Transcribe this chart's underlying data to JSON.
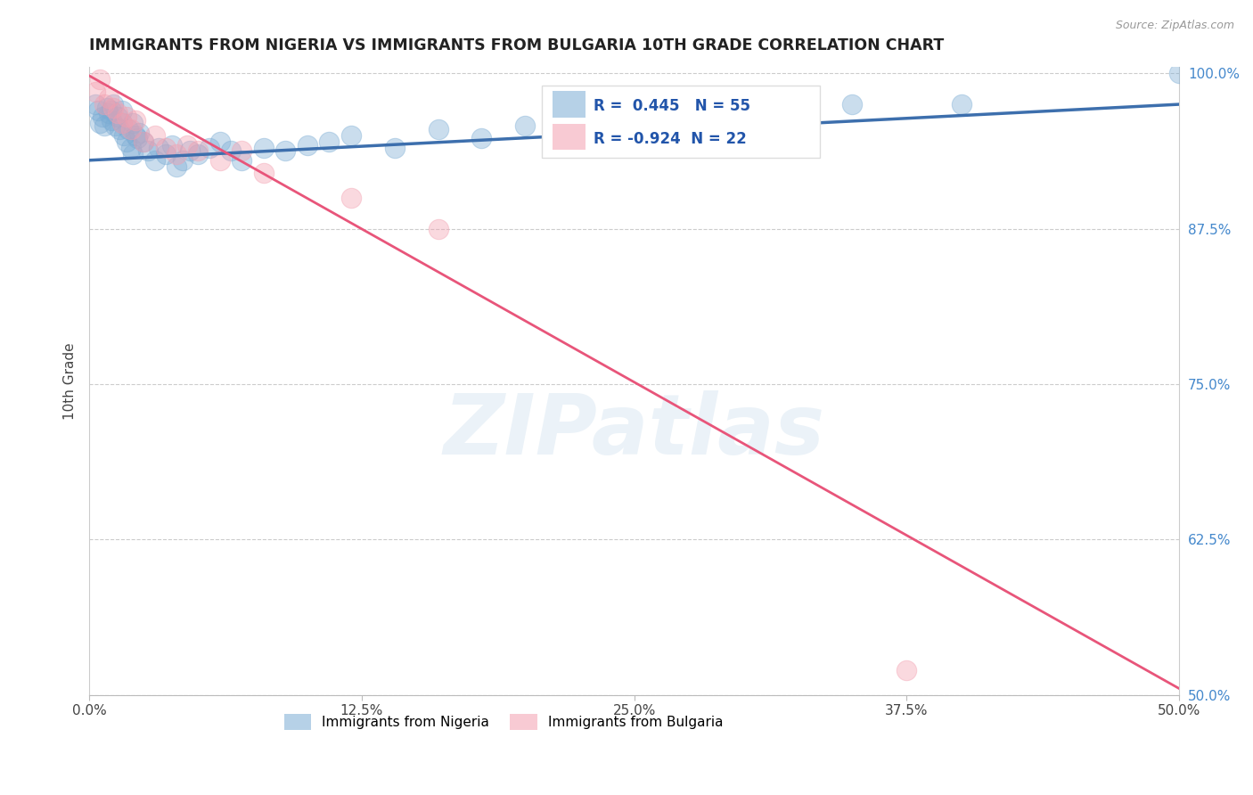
{
  "title": "IMMIGRANTS FROM NIGERIA VS IMMIGRANTS FROM BULGARIA 10TH GRADE CORRELATION CHART",
  "source_text": "Source: ZipAtlas.com",
  "ylabel": "10th Grade",
  "xlim": [
    0.0,
    0.5
  ],
  "ylim": [
    0.5,
    1.005
  ],
  "xtick_labels": [
    "0.0%",
    "12.5%",
    "25.0%",
    "37.5%",
    "50.0%"
  ],
  "xtick_vals": [
    0.0,
    0.125,
    0.25,
    0.375,
    0.5
  ],
  "ytick_labels": [
    "50.0%",
    "62.5%",
    "75.0%",
    "87.5%",
    "100.0%"
  ],
  "ytick_vals": [
    0.5,
    0.625,
    0.75,
    0.875,
    1.0
  ],
  "nigeria_color": "#7BACD4",
  "bulgaria_color": "#F4A0B0",
  "nigeria_line_color": "#3D6FAD",
  "bulgaria_line_color": "#E8557A",
  "R_nigeria": 0.445,
  "N_nigeria": 55,
  "R_bulgaria": -0.924,
  "N_bulgaria": 22,
  "watermark": "ZIPatlas",
  "nigeria_scatter_x": [
    0.003,
    0.004,
    0.005,
    0.006,
    0.007,
    0.008,
    0.009,
    0.01,
    0.01,
    0.011,
    0.012,
    0.013,
    0.014,
    0.015,
    0.015,
    0.016,
    0.017,
    0.018,
    0.019,
    0.02,
    0.02,
    0.021,
    0.022,
    0.023,
    0.025,
    0.027,
    0.03,
    0.032,
    0.035,
    0.038,
    0.04,
    0.043,
    0.046,
    0.05,
    0.055,
    0.06,
    0.065,
    0.07,
    0.08,
    0.09,
    0.1,
    0.11,
    0.12,
    0.14,
    0.16,
    0.18,
    0.2,
    0.22,
    0.24,
    0.26,
    0.28,
    0.3,
    0.35,
    0.4,
    0.5
  ],
  "nigeria_scatter_y": [
    0.975,
    0.97,
    0.96,
    0.965,
    0.958,
    0.972,
    0.968,
    0.962,
    0.97,
    0.975,
    0.958,
    0.965,
    0.955,
    0.96,
    0.97,
    0.95,
    0.945,
    0.955,
    0.94,
    0.935,
    0.96,
    0.95,
    0.948,
    0.952,
    0.945,
    0.938,
    0.93,
    0.94,
    0.935,
    0.942,
    0.925,
    0.93,
    0.938,
    0.935,
    0.94,
    0.945,
    0.938,
    0.93,
    0.94,
    0.938,
    0.942,
    0.945,
    0.95,
    0.94,
    0.955,
    0.948,
    0.958,
    0.952,
    0.962,
    0.968,
    0.96,
    0.97,
    0.975,
    0.975,
    1.0
  ],
  "bulgaria_scatter_x": [
    0.003,
    0.005,
    0.007,
    0.009,
    0.011,
    0.013,
    0.015,
    0.017,
    0.019,
    0.021,
    0.025,
    0.03,
    0.035,
    0.04,
    0.045,
    0.05,
    0.06,
    0.07,
    0.08,
    0.12,
    0.16,
    0.375
  ],
  "bulgaria_scatter_y": [
    0.985,
    0.995,
    0.975,
    0.98,
    0.972,
    0.968,
    0.96,
    0.965,
    0.955,
    0.962,
    0.945,
    0.95,
    0.94,
    0.935,
    0.942,
    0.938,
    0.93,
    0.938,
    0.92,
    0.9,
    0.875,
    0.52
  ],
  "nig_line_x0": 0.0,
  "nig_line_y0": 0.93,
  "nig_line_x1": 0.5,
  "nig_line_y1": 0.975,
  "bul_line_x0": 0.0,
  "bul_line_y0": 0.998,
  "bul_line_x1": 0.5,
  "bul_line_y1": 0.505
}
